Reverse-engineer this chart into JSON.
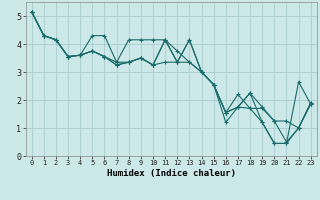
{
  "title": "",
  "xlabel": "Humidex (Indice chaleur)",
  "ylabel": "",
  "xlim": [
    -0.5,
    23.5
  ],
  "ylim": [
    0,
    5.5
  ],
  "xticks": [
    0,
    1,
    2,
    3,
    4,
    5,
    6,
    7,
    8,
    9,
    10,
    11,
    12,
    13,
    14,
    15,
    16,
    17,
    18,
    19,
    20,
    21,
    22,
    23
  ],
  "yticks": [
    0,
    1,
    2,
    3,
    4,
    5
  ],
  "background_color": "#cce8e8",
  "grid_color": "#aacccc",
  "line_color": "#1a6b6b",
  "lines": [
    [
      5.15,
      4.3,
      4.15,
      3.55,
      3.6,
      3.75,
      3.55,
      3.25,
      3.35,
      3.5,
      3.25,
      4.15,
      3.35,
      4.15,
      3.0,
      2.55,
      1.55,
      1.75,
      2.25,
      1.75,
      1.25,
      0.5,
      1.0,
      1.9
    ],
    [
      5.15,
      4.3,
      4.15,
      3.55,
      3.6,
      4.3,
      4.3,
      3.35,
      4.15,
      4.15,
      4.15,
      4.15,
      3.75,
      3.35,
      3.0,
      2.55,
      1.2,
      1.75,
      2.25,
      1.2,
      0.45,
      0.45,
      2.65,
      1.85
    ],
    [
      5.15,
      4.3,
      4.15,
      3.55,
      3.6,
      3.75,
      3.55,
      3.35,
      3.35,
      3.5,
      3.25,
      4.15,
      3.35,
      4.15,
      3.0,
      2.55,
      1.55,
      1.75,
      1.7,
      1.2,
      0.45,
      0.45,
      1.0,
      1.85
    ],
    [
      5.15,
      4.3,
      4.15,
      3.55,
      3.6,
      3.75,
      3.55,
      3.25,
      3.35,
      3.5,
      3.25,
      3.35,
      3.35,
      3.35,
      3.0,
      2.55,
      1.55,
      2.2,
      1.7,
      1.7,
      1.25,
      1.25,
      1.0,
      1.9
    ]
  ]
}
